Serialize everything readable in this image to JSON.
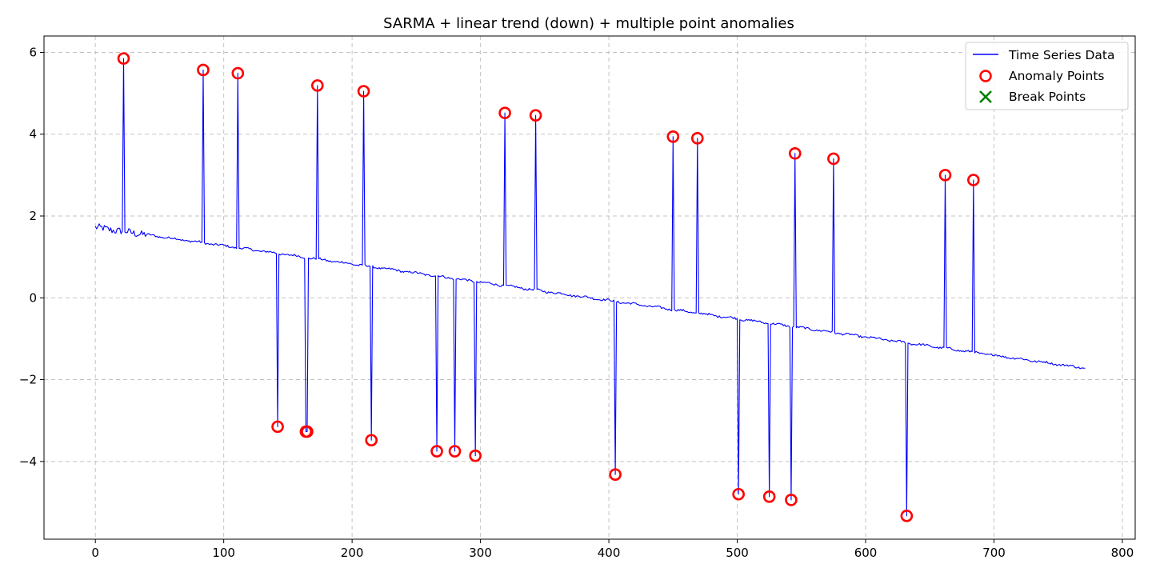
{
  "chart_data": {
    "type": "line",
    "title": "SARMA + linear trend (down) + multiple point anomalies",
    "xlabel": "",
    "ylabel": "",
    "xlim": [
      -40,
      810
    ],
    "ylim": [
      -5.9,
      6.4
    ],
    "xticks": [
      0,
      100,
      200,
      300,
      400,
      500,
      600,
      700,
      800
    ],
    "xtick_labels": [
      "0",
      "100",
      "200",
      "300",
      "400",
      "500",
      "600",
      "700",
      "800"
    ],
    "yticks": [
      -4,
      -2,
      0,
      2,
      4,
      6
    ],
    "ytick_labels": [
      "−4",
      "−2",
      "0",
      "2",
      "4",
      "6"
    ],
    "grid": true,
    "legend_position": "top-right",
    "series": [
      {
        "name": "Time Series Data",
        "color": "#0000ff",
        "trend": {
          "x_start": 0,
          "x_end": 771,
          "y_start": 1.72,
          "y_end": -1.72
        },
        "anomalies": [
          {
            "x": 22,
            "y": 5.85
          },
          {
            "x": 84,
            "y": 5.57
          },
          {
            "x": 111,
            "y": 5.49
          },
          {
            "x": 142,
            "y": -3.15
          },
          {
            "x": 164,
            "y": -3.27
          },
          {
            "x": 165,
            "y": -3.27
          },
          {
            "x": 173,
            "y": 5.19
          },
          {
            "x": 209,
            "y": 5.05
          },
          {
            "x": 215,
            "y": -3.48
          },
          {
            "x": 266,
            "y": -3.75
          },
          {
            "x": 280,
            "y": -3.75
          },
          {
            "x": 296,
            "y": -3.86
          },
          {
            "x": 319,
            "y": 4.52
          },
          {
            "x": 343,
            "y": 4.46
          },
          {
            "x": 405,
            "y": -4.32
          },
          {
            "x": 450,
            "y": 3.94
          },
          {
            "x": 469,
            "y": 3.9
          },
          {
            "x": 501,
            "y": -4.8
          },
          {
            "x": 525,
            "y": -4.86
          },
          {
            "x": 542,
            "y": -4.94
          },
          {
            "x": 545,
            "y": 3.53
          },
          {
            "x": 575,
            "y": 3.4
          },
          {
            "x": 632,
            "y": -5.33
          },
          {
            "x": 662,
            "y": 3.0
          },
          {
            "x": 684,
            "y": 2.88
          }
        ]
      }
    ],
    "anomaly_points": {
      "name": "Anomaly Points",
      "color": "#ff0000",
      "x": [
        22,
        84,
        111,
        142,
        164,
        165,
        173,
        209,
        215,
        266,
        280,
        296,
        319,
        343,
        405,
        450,
        469,
        501,
        525,
        542,
        545,
        575,
        632,
        662,
        684
      ],
      "y": [
        5.85,
        5.57,
        5.49,
        -3.15,
        -3.27,
        -3.27,
        5.19,
        5.05,
        -3.48,
        -3.75,
        -3.75,
        -3.86,
        4.52,
        4.46,
        -4.32,
        3.94,
        3.9,
        -4.8,
        -4.86,
        -4.94,
        3.53,
        3.4,
        -5.33,
        3.0,
        2.88
      ]
    },
    "break_points": {
      "name": "Break Points",
      "color": "#008000",
      "x": [],
      "y": []
    }
  }
}
